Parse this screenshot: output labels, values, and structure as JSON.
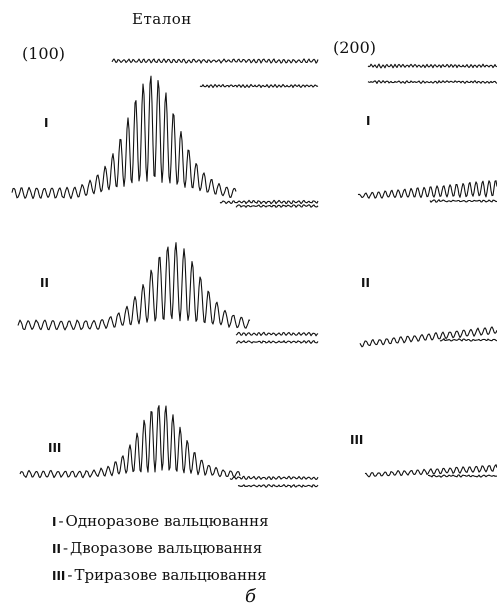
{
  "figure": {
    "title": "Еталон",
    "sublabel": "б",
    "columns": [
      {
        "reflection": "(100)"
      },
      {
        "reflection": "(200)"
      }
    ],
    "row_labels": [
      "I",
      "II",
      "III"
    ],
    "legend": [
      {
        "num": "I",
        "sep": "-",
        "text": "Одноразове вальцювання"
      },
      {
        "num": "II",
        "sep": "-",
        "text": "Дворазове вальцювання"
      },
      {
        "num": "III",
        "sep": "-",
        "text": "Триразове вальцювання"
      }
    ]
  }
}
